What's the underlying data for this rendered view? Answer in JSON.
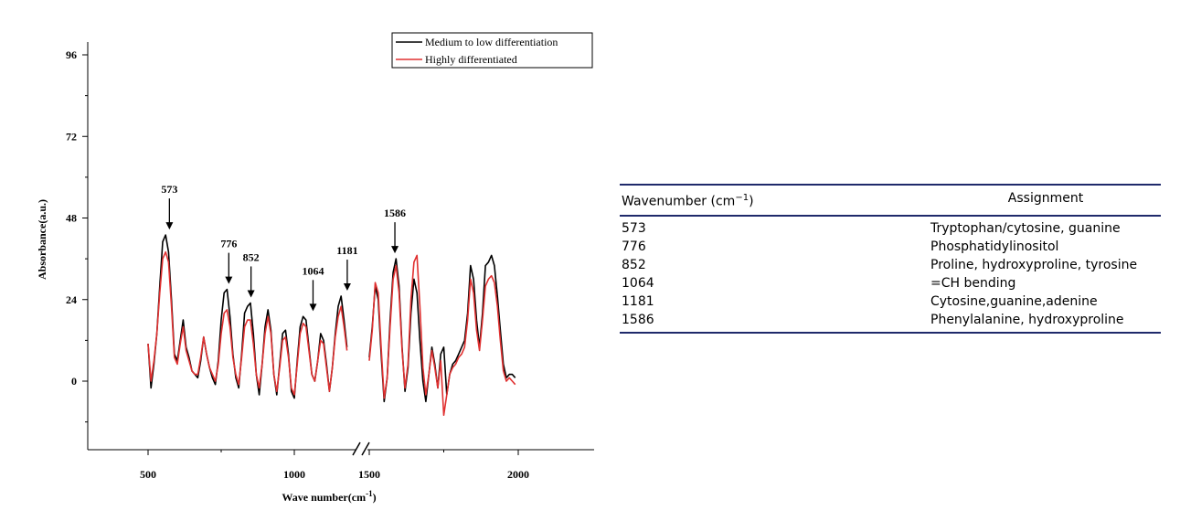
{
  "chart_data": {
    "type": "line",
    "ylabel": "Absorbance(a.u.)",
    "xlabel": "Wave number(cm",
    "xlabel_sup": "-1",
    "xlabel_close": ")",
    "ylim": [
      -20,
      100
    ],
    "yticks": [
      "0",
      "24",
      "48",
      "72",
      "96"
    ],
    "xticks": [
      "500",
      "1000",
      "1500",
      "2000"
    ],
    "axis_break": "between 1000 and 1500",
    "legend": "top-right",
    "series": [
      {
        "name": "Medium to low differentiation",
        "color": "#000000",
        "points": [
          [
            500,
            11
          ],
          [
            510,
            -2
          ],
          [
            520,
            5
          ],
          [
            530,
            14
          ],
          [
            540,
            28
          ],
          [
            550,
            41
          ],
          [
            560,
            43
          ],
          [
            570,
            38
          ],
          [
            580,
            24
          ],
          [
            590,
            8
          ],
          [
            600,
            6
          ],
          [
            610,
            12
          ],
          [
            620,
            18
          ],
          [
            630,
            10
          ],
          [
            640,
            7
          ],
          [
            650,
            3
          ],
          [
            660,
            2
          ],
          [
            670,
            1
          ],
          [
            680,
            6
          ],
          [
            690,
            13
          ],
          [
            700,
            8
          ],
          [
            710,
            4
          ],
          [
            720,
            1
          ],
          [
            730,
            -1
          ],
          [
            740,
            6
          ],
          [
            750,
            18
          ],
          [
            760,
            26
          ],
          [
            770,
            27
          ],
          [
            780,
            19
          ],
          [
            790,
            8
          ],
          [
            800,
            1
          ],
          [
            810,
            -2
          ],
          [
            820,
            8
          ],
          [
            830,
            20
          ],
          [
            840,
            22
          ],
          [
            850,
            23
          ],
          [
            860,
            14
          ],
          [
            870,
            2
          ],
          [
            880,
            -4
          ],
          [
            890,
            5
          ],
          [
            900,
            16
          ],
          [
            910,
            21
          ],
          [
            920,
            15
          ],
          [
            930,
            2
          ],
          [
            940,
            -4
          ],
          [
            950,
            5
          ],
          [
            960,
            14
          ],
          [
            970,
            15
          ],
          [
            980,
            8
          ],
          [
            990,
            -3
          ],
          [
            1000,
            -5
          ],
          [
            1010,
            6
          ],
          [
            1020,
            16
          ],
          [
            1030,
            19
          ],
          [
            1040,
            18
          ],
          [
            1050,
            10
          ],
          [
            1060,
            2
          ],
          [
            1070,
            0
          ],
          [
            1080,
            6
          ],
          [
            1090,
            14
          ],
          [
            1100,
            12
          ],
          [
            1110,
            5
          ],
          [
            1120,
            -3
          ],
          [
            1130,
            4
          ],
          [
            1140,
            14
          ],
          [
            1150,
            22
          ],
          [
            1160,
            25
          ],
          [
            1170,
            18
          ],
          [
            1180,
            10
          ],
          [
            1500,
            7
          ],
          [
            1510,
            16
          ],
          [
            1520,
            28
          ],
          [
            1530,
            24
          ],
          [
            1540,
            8
          ],
          [
            1550,
            -6
          ],
          [
            1560,
            1
          ],
          [
            1570,
            18
          ],
          [
            1580,
            32
          ],
          [
            1590,
            36
          ],
          [
            1600,
            28
          ],
          [
            1610,
            10
          ],
          [
            1620,
            -3
          ],
          [
            1630,
            4
          ],
          [
            1640,
            20
          ],
          [
            1650,
            30
          ],
          [
            1660,
            26
          ],
          [
            1670,
            12
          ],
          [
            1680,
            0
          ],
          [
            1690,
            -6
          ],
          [
            1700,
            2
          ],
          [
            1710,
            10
          ],
          [
            1720,
            5
          ],
          [
            1730,
            -2
          ],
          [
            1740,
            8
          ],
          [
            1750,
            10
          ],
          [
            1760,
            -4
          ],
          [
            1770,
            2
          ],
          [
            1780,
            5
          ],
          [
            1790,
            6
          ],
          [
            1800,
            8
          ],
          [
            1810,
            10
          ],
          [
            1820,
            12
          ],
          [
            1830,
            20
          ],
          [
            1840,
            34
          ],
          [
            1850,
            30
          ],
          [
            1860,
            18
          ],
          [
            1870,
            10
          ],
          [
            1880,
            20
          ],
          [
            1890,
            34
          ],
          [
            1900,
            35
          ],
          [
            1910,
            37
          ],
          [
            1920,
            34
          ],
          [
            1930,
            25
          ],
          [
            1940,
            15
          ],
          [
            1950,
            5
          ],
          [
            1960,
            1
          ],
          [
            1970,
            2
          ],
          [
            1980,
            2
          ],
          [
            1990,
            1
          ]
        ]
      },
      {
        "name": "Highly differentiated",
        "color": "#e03030",
        "points": [
          [
            500,
            11
          ],
          [
            510,
            0
          ],
          [
            520,
            6
          ],
          [
            530,
            14
          ],
          [
            540,
            26
          ],
          [
            550,
            36
          ],
          [
            560,
            38
          ],
          [
            570,
            35
          ],
          [
            580,
            22
          ],
          [
            590,
            7
          ],
          [
            600,
            5
          ],
          [
            610,
            11
          ],
          [
            620,
            16
          ],
          [
            630,
            9
          ],
          [
            640,
            6
          ],
          [
            650,
            3
          ],
          [
            660,
            2
          ],
          [
            670,
            2
          ],
          [
            680,
            7
          ],
          [
            690,
            13
          ],
          [
            700,
            8
          ],
          [
            710,
            4
          ],
          [
            720,
            2
          ],
          [
            730,
            0
          ],
          [
            740,
            5
          ],
          [
            750,
            14
          ],
          [
            760,
            20
          ],
          [
            770,
            21
          ],
          [
            780,
            16
          ],
          [
            790,
            7
          ],
          [
            800,
            2
          ],
          [
            810,
            -1
          ],
          [
            820,
            7
          ],
          [
            830,
            16
          ],
          [
            840,
            18
          ],
          [
            850,
            18
          ],
          [
            860,
            11
          ],
          [
            870,
            2
          ],
          [
            880,
            -2
          ],
          [
            890,
            5
          ],
          [
            900,
            14
          ],
          [
            910,
            19
          ],
          [
            920,
            14
          ],
          [
            930,
            2
          ],
          [
            940,
            -3
          ],
          [
            950,
            4
          ],
          [
            960,
            12
          ],
          [
            970,
            13
          ],
          [
            980,
            7
          ],
          [
            990,
            -2
          ],
          [
            1000,
            -4
          ],
          [
            1010,
            5
          ],
          [
            1020,
            14
          ],
          [
            1030,
            17
          ],
          [
            1040,
            16
          ],
          [
            1050,
            9
          ],
          [
            1060,
            2
          ],
          [
            1070,
            0
          ],
          [
            1080,
            6
          ],
          [
            1090,
            12
          ],
          [
            1100,
            11
          ],
          [
            1110,
            4
          ],
          [
            1120,
            -3
          ],
          [
            1130,
            4
          ],
          [
            1140,
            13
          ],
          [
            1150,
            19
          ],
          [
            1160,
            22
          ],
          [
            1170,
            16
          ],
          [
            1180,
            9
          ],
          [
            1500,
            6
          ],
          [
            1510,
            15
          ],
          [
            1520,
            29
          ],
          [
            1530,
            26
          ],
          [
            1540,
            10
          ],
          [
            1550,
            -5
          ],
          [
            1560,
            1
          ],
          [
            1570,
            16
          ],
          [
            1580,
            30
          ],
          [
            1590,
            34
          ],
          [
            1600,
            26
          ],
          [
            1610,
            9
          ],
          [
            1620,
            -2
          ],
          [
            1630,
            5
          ],
          [
            1640,
            24
          ],
          [
            1650,
            35
          ],
          [
            1660,
            37
          ],
          [
            1670,
            22
          ],
          [
            1680,
            4
          ],
          [
            1690,
            -4
          ],
          [
            1700,
            2
          ],
          [
            1710,
            9
          ],
          [
            1720,
            4
          ],
          [
            1730,
            -2
          ],
          [
            1740,
            6
          ],
          [
            1750,
            -10
          ],
          [
            1760,
            -4
          ],
          [
            1770,
            2
          ],
          [
            1780,
            4
          ],
          [
            1790,
            5
          ],
          [
            1800,
            7
          ],
          [
            1810,
            8
          ],
          [
            1820,
            10
          ],
          [
            1830,
            18
          ],
          [
            1840,
            30
          ],
          [
            1850,
            26
          ],
          [
            1860,
            15
          ],
          [
            1870,
            9
          ],
          [
            1880,
            18
          ],
          [
            1890,
            28
          ],
          [
            1900,
            30
          ],
          [
            1910,
            31
          ],
          [
            1920,
            29
          ],
          [
            1930,
            22
          ],
          [
            1940,
            12
          ],
          [
            1950,
            3
          ],
          [
            1960,
            0
          ],
          [
            1970,
            1
          ],
          [
            1980,
            0
          ],
          [
            1990,
            -1
          ]
        ]
      }
    ],
    "annotations": [
      {
        "label": "573",
        "x": 573,
        "y": 43
      },
      {
        "label": "776",
        "x": 776,
        "y": 27
      },
      {
        "label": "852",
        "x": 852,
        "y": 23
      },
      {
        "label": "1064",
        "x": 1064,
        "y": 19
      },
      {
        "label": "1181",
        "x": 1181,
        "y": 25
      },
      {
        "label": "1586",
        "x": 1586,
        "y": 36
      }
    ]
  },
  "table": {
    "header_col1": "Wavenumber (cm",
    "header_col1_sup": "−1",
    "header_col1_close": ")",
    "header_col2": "Assignment",
    "rows": [
      {
        "wavenumber": "573",
        "assignment": "Tryptophan/cytosine, guanine"
      },
      {
        "wavenumber": "776",
        "assignment": "Phosphatidylinositol"
      },
      {
        "wavenumber": "852",
        "assignment": "Proline, hydroxyproline, tyrosine"
      },
      {
        "wavenumber": "1064",
        "assignment": "=CH bending"
      },
      {
        "wavenumber": "1181",
        "assignment": "Cytosine,guanine,adenine"
      },
      {
        "wavenumber": "1586",
        "assignment": "Phenylalanine, hydroxyproline"
      }
    ]
  }
}
